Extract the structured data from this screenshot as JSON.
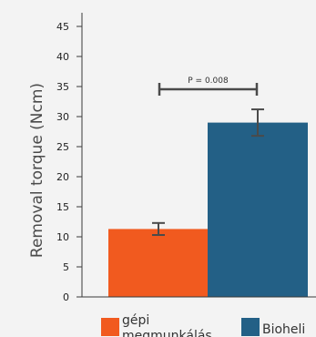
{
  "chart_data": {
    "type": "bar",
    "ylabel": "Removal torque (Ncm)",
    "ylim": [
      0,
      45
    ],
    "yticks": [
      0,
      5,
      10,
      15,
      20,
      25,
      30,
      35,
      40,
      45
    ],
    "categories": [
      "gépi megmunkálás",
      "Bioheli"
    ],
    "values": [
      11.3,
      29.0
    ],
    "errors": [
      1.0,
      2.2
    ],
    "colors": [
      "#f15a1f",
      "#236086"
    ],
    "significance": {
      "label": "P = 0.008",
      "between": [
        0,
        1
      ]
    },
    "legend": [
      {
        "label": "gépi megmunkálás",
        "color": "#f15a1f"
      },
      {
        "label": "Bioheli",
        "color": "#236086"
      }
    ],
    "grid": false,
    "legend_position": "bottom"
  }
}
